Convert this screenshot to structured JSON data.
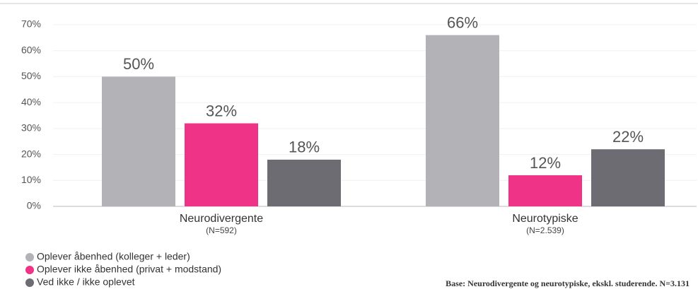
{
  "chart_data": {
    "type": "bar",
    "categories": [
      "Neurodivergente",
      "Neurotypiske"
    ],
    "category_notes": [
      "(N=592)",
      "(N=2.539)"
    ],
    "series": [
      {
        "name": "Oplever åbenhed (kolleger + leder)",
        "color": "#b3b2b6",
        "values": [
          50,
          66
        ],
        "value_labels": [
          "50%",
          "66%"
        ]
      },
      {
        "name": "Oplever ikke åbenhed (privat + modstand)",
        "color": "#ef3488",
        "values": [
          32,
          12
        ],
        "value_labels": [
          "32%",
          "12%"
        ]
      },
      {
        "name": "Ved ikke / ikke oplevet",
        "color": "#6c6c72",
        "values": [
          18,
          22
        ],
        "value_labels": [
          "18%",
          "22%"
        ]
      }
    ],
    "ylim": [
      0,
      70
    ],
    "yticks": [
      {
        "value": 0,
        "label": "0%"
      },
      {
        "value": 10,
        "label": "10%"
      },
      {
        "value": 20,
        "label": "20%"
      },
      {
        "value": 30,
        "label": "30%"
      },
      {
        "value": 40,
        "label": "40%"
      },
      {
        "value": 50,
        "label": "50%"
      },
      {
        "value": 60,
        "label": "60%"
      },
      {
        "value": 70,
        "label": "70%"
      }
    ],
    "grid": true,
    "legend": "bottom-left",
    "footnote": "Base: Neurodivergente og neurotypiske, ekskl. studerende. N=3.131"
  }
}
